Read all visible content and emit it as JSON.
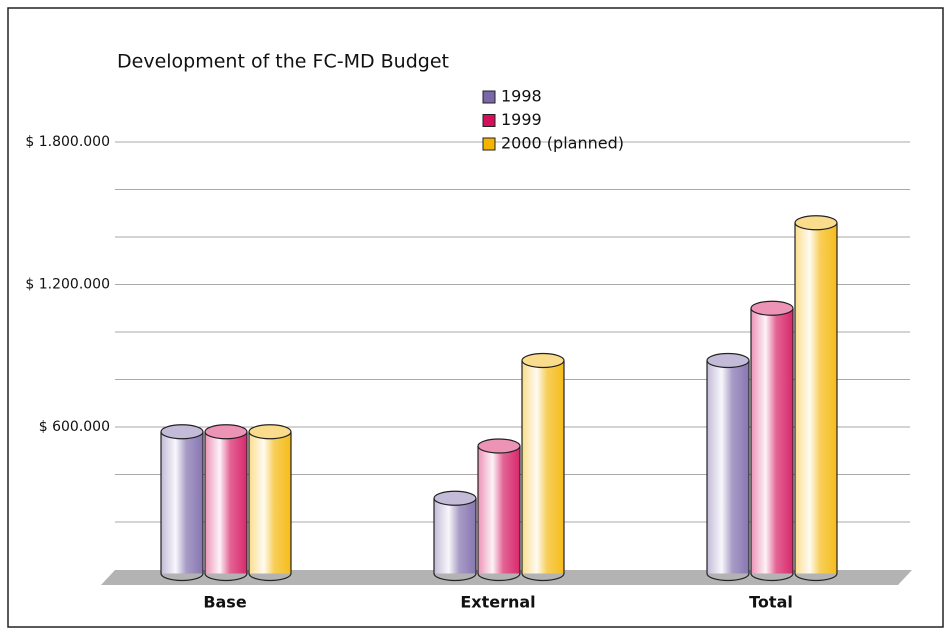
{
  "chart_data": {
    "type": "bar",
    "title": "Development of the FC-MD Budget",
    "categories": [
      "Base",
      "External",
      "Total"
    ],
    "series": [
      {
        "name": "1998",
        "color": "#7a67a8",
        "values": [
          580000,
          300000,
          880000
        ]
      },
      {
        "name": "1999",
        "color": "#d4105c",
        "values": [
          580000,
          520000,
          1100000
        ]
      },
      {
        "name": "2000 (planned)",
        "color": "#f4b400",
        "values": [
          580000,
          880000,
          1460000
        ]
      }
    ],
    "ylim": [
      0,
      1800000
    ],
    "yticks": [
      {
        "value": 600000,
        "label": "$ 600.000"
      },
      {
        "value": 1200000,
        "label": "$ 1.200.000"
      },
      {
        "value": 1800000,
        "label": "$ 1.800.000"
      }
    ],
    "minor_yticks": [
      200000,
      400000,
      800000,
      1000000,
      1400000,
      1600000
    ],
    "grid": true
  }
}
